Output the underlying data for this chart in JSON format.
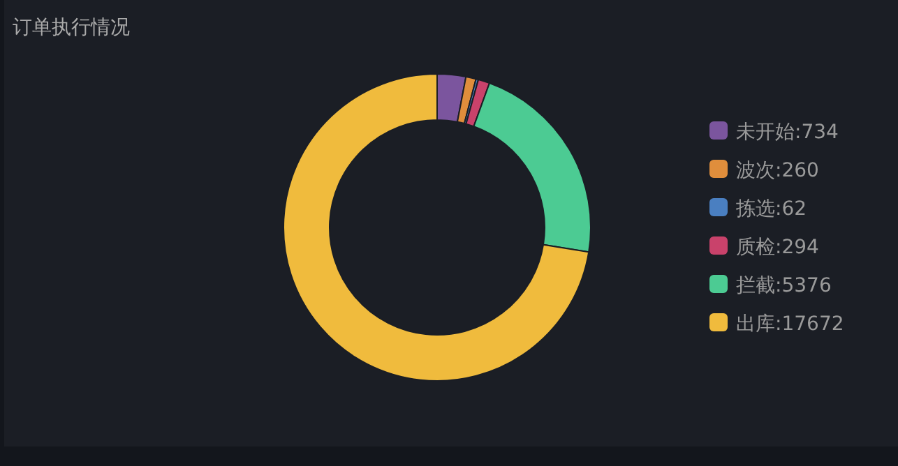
{
  "chart_data": {
    "type": "donut",
    "title": "订单执行情况",
    "categories": [
      "未开始:734",
      "波次:260",
      "拣选:62",
      "质检:294",
      "拦截:5376",
      "出库:17672"
    ],
    "values": [
      734,
      260,
      62,
      294,
      5376,
      17672
    ],
    "colors": [
      "#7b559e",
      "#e08e3c",
      "#4a7fc1",
      "#c9426b",
      "#4ccb93",
      "#f0bb3d"
    ],
    "legend": "right"
  }
}
